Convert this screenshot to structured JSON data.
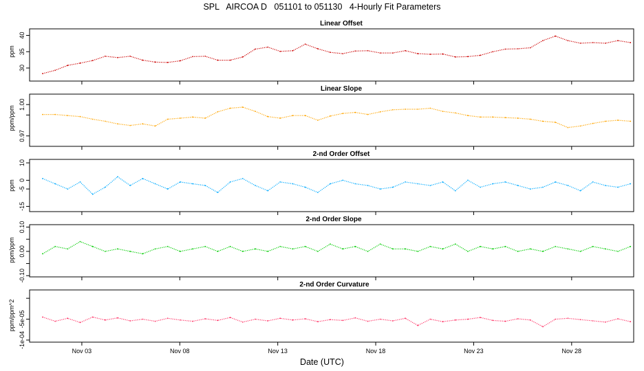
{
  "figure": {
    "title": "SPL   AIRCOA D   051101 to 051130   4-Hourly Fit Parameters",
    "xlabel": "Date (UTC)"
  },
  "chart_data": [
    {
      "type": "line",
      "title": "Linear Offset",
      "ylabel": "ppm",
      "ylim": [
        26,
        42
      ],
      "yticks": [
        30,
        35,
        40
      ],
      "ytick_labels": [
        "30",
        "35",
        "40"
      ],
      "color": "#cc0000",
      "x_start": "2005-11-01T00:00",
      "x_step_hours": 4,
      "series": [
        {
          "values": [
            28.3,
            29.3,
            30.8,
            31.5,
            32.3,
            33.6,
            33.2,
            33.6,
            32.4,
            31.8,
            31.7,
            32.2,
            33.5,
            33.6,
            32.4,
            32.4,
            33.4,
            35.8,
            36.4,
            35.1,
            35.3,
            37.3,
            35.9,
            34.8,
            34.4,
            35.2,
            35.3,
            34.6,
            34.6,
            35.3,
            34.4,
            34.2,
            34.3,
            33.4,
            33.5,
            33.9,
            35.0,
            35.8,
            35.9,
            36.2,
            38.4,
            39.8,
            38.4,
            37.6,
            37.8,
            37.6,
            38.4,
            37.8
          ]
        }
      ]
    },
    {
      "type": "line",
      "title": "Linear Slope",
      "ylabel": "ppm/ppm",
      "ylim": [
        0.96,
        1.01
      ],
      "yticks": [
        0.97,
        0.99,
        1.0
      ],
      "ytick_labels": [
        "0.97",
        "",
        "1.00"
      ],
      "color": "#ffa500",
      "x_start": "2005-11-01T00:00",
      "x_step_hours": 4,
      "series": [
        {
          "values": [
            0.9905,
            0.9905,
            0.9895,
            0.9885,
            0.986,
            0.984,
            0.9815,
            0.98,
            0.9815,
            0.9795,
            0.986,
            0.987,
            0.988,
            0.987,
            0.993,
            0.9965,
            0.9975,
            0.9935,
            0.9885,
            0.987,
            0.9895,
            0.9895,
            0.985,
            0.989,
            0.9915,
            0.9925,
            0.9905,
            0.993,
            0.995,
            0.9955,
            0.9955,
            0.9965,
            0.9935,
            0.992,
            0.9895,
            0.988,
            0.988,
            0.9875,
            0.987,
            0.986,
            0.984,
            0.983,
            0.978,
            0.9795,
            0.982,
            0.984,
            0.985,
            0.984
          ]
        }
      ]
    },
    {
      "type": "line",
      "title": "2-nd Order Offset",
      "ylabel": "ppm",
      "ylim": [
        -18,
        12
      ],
      "yticks": [
        -15,
        -5,
        0,
        10
      ],
      "ytick_labels": [
        "-15",
        "-5",
        "0",
        "10"
      ],
      "color": "#00aaff",
      "x_start": "2005-11-01T00:00",
      "x_step_hours": 4,
      "series": [
        {
          "values": [
            1,
            -2,
            -5,
            -1,
            -8,
            -4,
            2,
            -3,
            1,
            -2,
            -5,
            -1,
            -2,
            -3,
            -7,
            -1,
            1,
            -3,
            -6,
            -1,
            -2,
            -4,
            -7,
            -2,
            0,
            -2,
            -3,
            -5,
            -4,
            -1,
            -2,
            -3,
            -1,
            -6,
            0,
            -4,
            -2,
            -1,
            -3,
            -5,
            -4,
            -1,
            -3,
            -6,
            -1,
            -3,
            -4,
            -2
          ]
        }
      ]
    },
    {
      "type": "line",
      "title": "2-nd Order Slope",
      "ylabel": "ppm/ppm",
      "ylim": [
        -0.105,
        0.11
      ],
      "yticks": [
        -0.1,
        -0.05,
        0.0,
        0.05,
        0.1
      ],
      "ytick_labels": [
        "-0.10",
        "",
        "0.00",
        "",
        "0.10"
      ],
      "color": "#00cc00",
      "x_start": "2005-11-01T00:00",
      "x_step_hours": 4,
      "series": [
        {
          "values": [
            -0.01,
            0.02,
            0.01,
            0.04,
            0.02,
            0.0,
            0.01,
            0.0,
            -0.01,
            0.01,
            0.02,
            0.0,
            0.01,
            0.02,
            0.0,
            0.02,
            0.0,
            0.01,
            0.0,
            0.02,
            0.01,
            0.02,
            0.0,
            0.03,
            0.01,
            0.02,
            0.0,
            0.03,
            0.01,
            0.01,
            0.0,
            0.02,
            0.01,
            0.03,
            0.0,
            0.02,
            0.01,
            0.02,
            0.0,
            0.01,
            0.0,
            0.02,
            0.01,
            0.0,
            0.02,
            0.01,
            0.0,
            0.02
          ]
        }
      ]
    },
    {
      "type": "line",
      "title": "2-nd Order Curvature",
      "ylabel": "ppm/ppm^2",
      "ylim": [
        -0.000105,
        2e-05
      ],
      "yticks": [
        -0.0001,
        -5e-05,
        0
      ],
      "ytick_labels": [
        "-1e-04",
        "-5e-05",
        ""
      ],
      "color": "#ff3366",
      "x_start": "2005-11-01T00:00",
      "x_step_hours": 4,
      "series": [
        {
          "values": [
            -4.5e-05,
            -5.5e-05,
            -4.8e-05,
            -5.8e-05,
            -4.5e-05,
            -5.2e-05,
            -4.7e-05,
            -5.4e-05,
            -5e-05,
            -5.5e-05,
            -4.8e-05,
            -5.2e-05,
            -5.5e-05,
            -4.9e-05,
            -5.3e-05,
            -4.6e-05,
            -5.7e-05,
            -5e-05,
            -5.4e-05,
            -4.8e-05,
            -5.2e-05,
            -4.9e-05,
            -5.6e-05,
            -5.1e-05,
            -5.3e-05,
            -4.7e-05,
            -5.5e-05,
            -5e-05,
            -5.4e-05,
            -4.8e-05,
            -6.5e-05,
            -5e-05,
            -5.6e-05,
            -5.2e-05,
            -5e-05,
            -4.6e-05,
            -5.3e-05,
            -5.5e-05,
            -4.9e-05,
            -5.2e-05,
            -6.8e-05,
            -5e-05,
            -4.8e-05,
            -5.1e-05,
            -5.4e-05,
            -5.7e-05,
            -4.9e-05,
            -5.6e-05
          ]
        }
      ]
    }
  ],
  "x_axis": {
    "xlim": [
      "2005-10-31T08:00",
      "2005-12-01T04:00"
    ],
    "ticks": [
      "2005-11-03",
      "2005-11-08",
      "2005-11-13",
      "2005-11-18",
      "2005-11-23",
      "2005-11-28"
    ],
    "tick_labels": [
      "Nov 03",
      "Nov 08",
      "Nov 13",
      "Nov 18",
      "Nov 23",
      "Nov 28"
    ]
  }
}
